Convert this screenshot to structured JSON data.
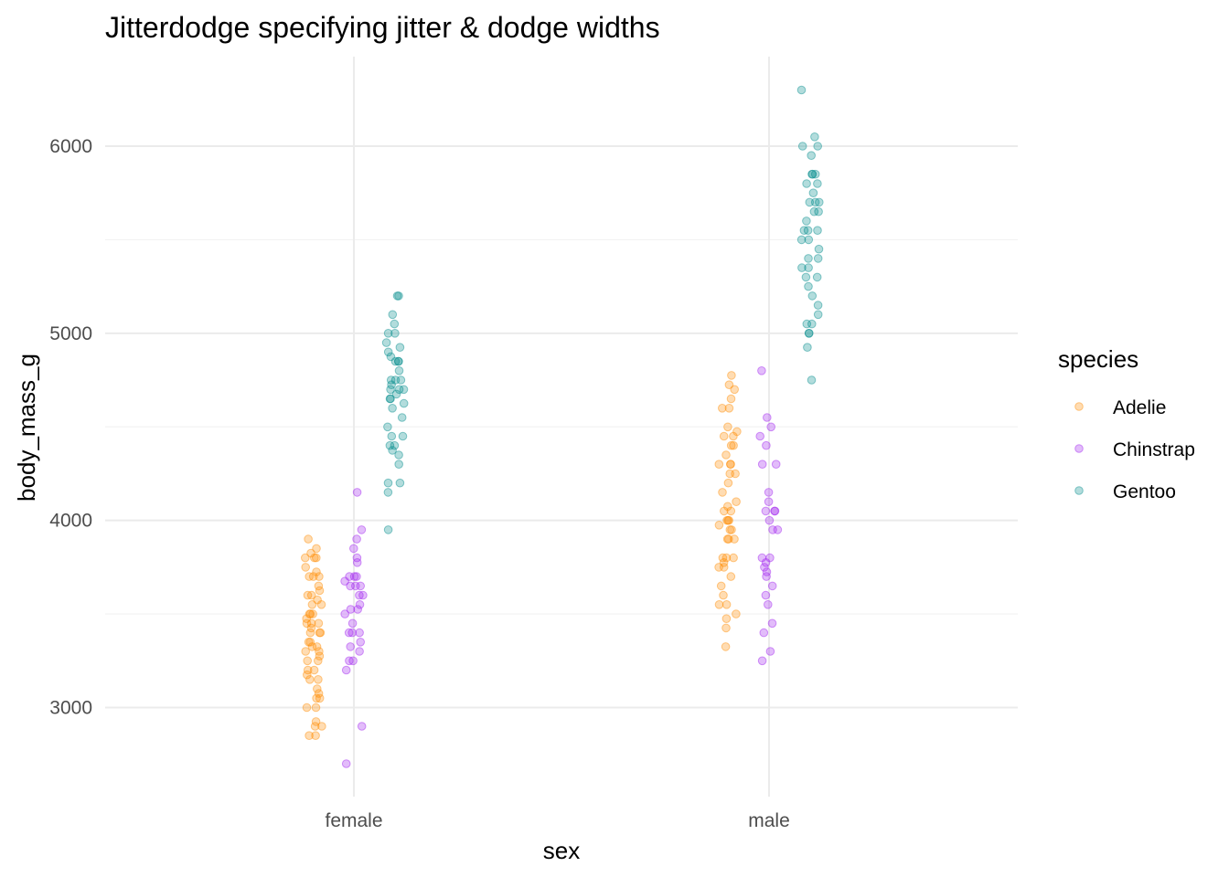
{
  "chart_data": {
    "type": "scatter",
    "title": "Jitterdodge specifying jitter & dodge widths",
    "xlabel": "sex",
    "ylabel": "body_mass_g",
    "categories": [
      "female",
      "male"
    ],
    "ylim": [
      2500,
      6400
    ],
    "y_ticks": [
      3000,
      4000,
      5000,
      6000
    ],
    "grid": true,
    "legend": {
      "title": "species",
      "position": "right"
    },
    "series": [
      {
        "name": "Adelie",
        "color": "#FF8C00",
        "points": {
          "female": [
            2850,
            2850,
            2900,
            2900,
            2925,
            3000,
            3000,
            3050,
            3050,
            3075,
            3100,
            3150,
            3150,
            3175,
            3200,
            3200,
            3250,
            3250,
            3275,
            3300,
            3300,
            3325,
            3325,
            3350,
            3350,
            3400,
            3400,
            3400,
            3425,
            3450,
            3450,
            3450,
            3475,
            3500,
            3500,
            3500,
            3550,
            3550,
            3575,
            3600,
            3600,
            3625,
            3650,
            3700,
            3700,
            3700,
            3725,
            3750,
            3800,
            3800,
            3800,
            3825,
            3850,
            3900
          ],
          "male": [
            3325,
            3425,
            3475,
            3500,
            3550,
            3550,
            3600,
            3650,
            3700,
            3750,
            3750,
            3775,
            3800,
            3800,
            3800,
            3900,
            3900,
            3900,
            3950,
            3950,
            3975,
            4000,
            4000,
            4000,
            4050,
            4050,
            4075,
            4100,
            4150,
            4200,
            4250,
            4250,
            4300,
            4300,
            4300,
            4350,
            4400,
            4400,
            4450,
            4450,
            4475,
            4500,
            4600,
            4600,
            4650,
            4700,
            4725,
            4775
          ]
        }
      },
      {
        "name": "Chinstrap",
        "color": "#A020F0",
        "points": {
          "female": [
            2700,
            2900,
            3200,
            3250,
            3250,
            3300,
            3325,
            3350,
            3400,
            3400,
            3400,
            3450,
            3500,
            3525,
            3525,
            3550,
            3600,
            3600,
            3650,
            3650,
            3650,
            3675,
            3700,
            3700,
            3700,
            3775,
            3800,
            3850,
            3900,
            3950,
            4150
          ],
          "male": [
            3250,
            3300,
            3400,
            3450,
            3550,
            3600,
            3650,
            3700,
            3725,
            3750,
            3775,
            3800,
            3800,
            3950,
            3950,
            4000,
            4050,
            4050,
            4050,
            4100,
            4150,
            4300,
            4300,
            4400,
            4450,
            4500,
            4550,
            4800
          ]
        }
      },
      {
        "name": "Gentoo",
        "color": "#008B8B",
        "points": {
          "female": [
            3950,
            4150,
            4200,
            4200,
            4300,
            4350,
            4375,
            4400,
            4400,
            4450,
            4450,
            4500,
            4550,
            4600,
            4625,
            4650,
            4650,
            4675,
            4700,
            4700,
            4700,
            4725,
            4750,
            4750,
            4750,
            4800,
            4850,
            4850,
            4850,
            4875,
            4900,
            4925,
            4950,
            5000,
            5000,
            5050,
            5100,
            5200,
            5200
          ],
          "male": [
            4750,
            4925,
            5000,
            5000,
            5050,
            5050,
            5100,
            5150,
            5200,
            5250,
            5300,
            5300,
            5350,
            5350,
            5400,
            5400,
            5450,
            5500,
            5500,
            5550,
            5550,
            5550,
            5600,
            5650,
            5650,
            5700,
            5700,
            5700,
            5750,
            5800,
            5800,
            5850,
            5850,
            5850,
            5950,
            6000,
            6000,
            6050,
            6300
          ]
        }
      }
    ]
  }
}
